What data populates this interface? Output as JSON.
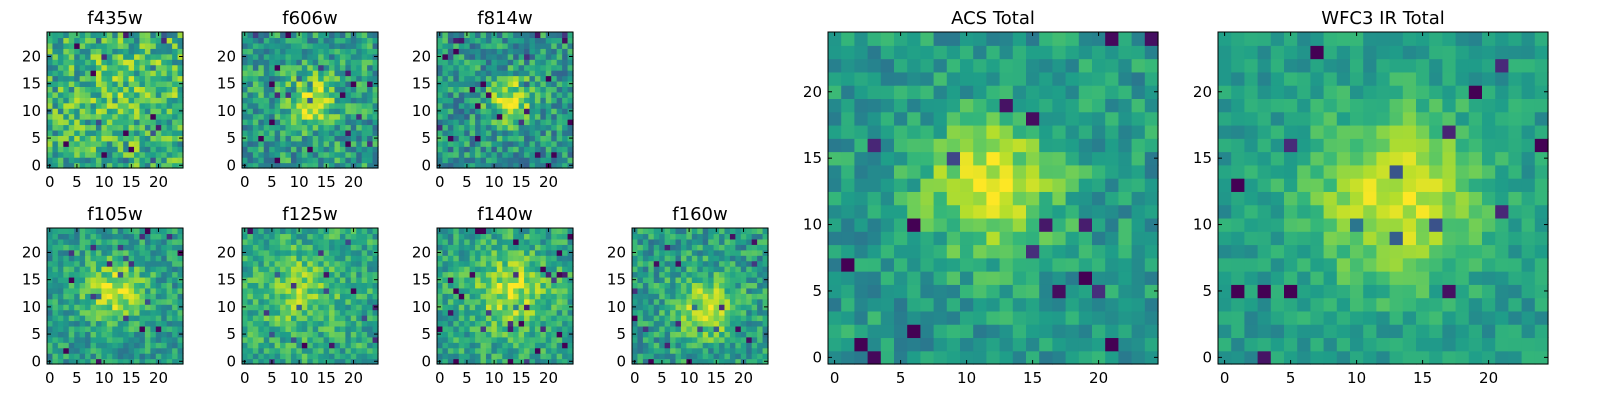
{
  "chart_data": [
    {
      "type": "heatmap",
      "name": "f435w",
      "title": "f435w",
      "xlim": [
        0,
        24
      ],
      "ylim": [
        0,
        24
      ],
      "xticks": [
        0,
        5,
        10,
        15,
        20
      ],
      "yticks": [
        0,
        5,
        10,
        15,
        20
      ],
      "seed": 11,
      "center": [
        15,
        14
      ],
      "sigma": 7,
      "amplitude": 0.1,
      "noise": 0.5,
      "base": 0.62
    },
    {
      "type": "heatmap",
      "name": "f606w",
      "title": "f606w",
      "xlim": [
        0,
        24
      ],
      "ylim": [
        0,
        24
      ],
      "xticks": [
        0,
        5,
        10,
        15,
        20
      ],
      "yticks": [
        0,
        5,
        10,
        15,
        20
      ],
      "seed": 23,
      "center": [
        12,
        12
      ],
      "sigma": 3.5,
      "amplitude": 0.35,
      "noise": 0.45,
      "base": 0.55
    },
    {
      "type": "heatmap",
      "name": "f814w",
      "title": "f814w",
      "xlim": [
        0,
        24
      ],
      "ylim": [
        0,
        24
      ],
      "xticks": [
        0,
        5,
        10,
        15,
        20
      ],
      "yticks": [
        0,
        5,
        10,
        15,
        20
      ],
      "seed": 37,
      "center": [
        13,
        12
      ],
      "sigma": 3,
      "amplitude": 0.4,
      "noise": 0.45,
      "base": 0.52
    },
    {
      "type": "heatmap",
      "name": "f105w",
      "title": "f105w",
      "xlim": [
        0,
        24
      ],
      "ylim": [
        0,
        24
      ],
      "xticks": [
        0,
        5,
        10,
        15,
        20
      ],
      "yticks": [
        0,
        5,
        10,
        15,
        20
      ],
      "seed": 41,
      "center": [
        12,
        13
      ],
      "sigma": 4,
      "amplitude": 0.35,
      "noise": 0.35,
      "base": 0.55
    },
    {
      "type": "heatmap",
      "name": "f125w",
      "title": "f125w",
      "xlim": [
        0,
        24
      ],
      "ylim": [
        0,
        24
      ],
      "xticks": [
        0,
        5,
        10,
        15,
        20
      ],
      "yticks": [
        0,
        5,
        10,
        15,
        20
      ],
      "seed": 53,
      "center": [
        10,
        13
      ],
      "sigma": 5,
      "amplitude": 0.2,
      "noise": 0.35,
      "base": 0.6
    },
    {
      "type": "heatmap",
      "name": "f140w",
      "title": "f140w",
      "xlim": [
        0,
        24
      ],
      "ylim": [
        0,
        24
      ],
      "xticks": [
        0,
        5,
        10,
        15,
        20
      ],
      "yticks": [
        0,
        5,
        10,
        15,
        20
      ],
      "seed": 67,
      "center": [
        13,
        13
      ],
      "sigma": 5,
      "amplitude": 0.3,
      "noise": 0.35,
      "base": 0.58
    },
    {
      "type": "heatmap",
      "name": "f160w",
      "title": "f160w",
      "xlim": [
        0,
        24
      ],
      "ylim": [
        0,
        24
      ],
      "xticks": [
        0,
        5,
        10,
        15,
        20
      ],
      "yticks": [
        0,
        5,
        10,
        15,
        20
      ],
      "seed": 79,
      "center": [
        13,
        10
      ],
      "sigma": 4,
      "amplitude": 0.35,
      "noise": 0.38,
      "base": 0.55
    },
    {
      "type": "heatmap",
      "name": "acs-total",
      "title": "ACS Total",
      "xlim": [
        0,
        24
      ],
      "ylim": [
        0,
        24
      ],
      "xticks": [
        0,
        5,
        10,
        15,
        20
      ],
      "yticks": [
        0,
        5,
        10,
        15,
        20
      ],
      "seed": 91,
      "center": [
        12,
        13
      ],
      "sigma": 3.5,
      "amplitude": 0.4,
      "noise": 0.3,
      "base": 0.55
    },
    {
      "type": "heatmap",
      "name": "wfc3-ir-total",
      "title": "WFC3 IR Total",
      "xlim": [
        0,
        24
      ],
      "ylim": [
        0,
        24
      ],
      "xticks": [
        0,
        5,
        10,
        15,
        20
      ],
      "yticks": [
        0,
        5,
        10,
        15,
        20
      ],
      "seed": 103,
      "center": [
        13,
        12
      ],
      "sigma": 4.5,
      "amplitude": 0.4,
      "noise": 0.22,
      "base": 0.55
    }
  ],
  "colors": {
    "background": "#ffffff",
    "axis": "#000000",
    "text": "#000000"
  }
}
